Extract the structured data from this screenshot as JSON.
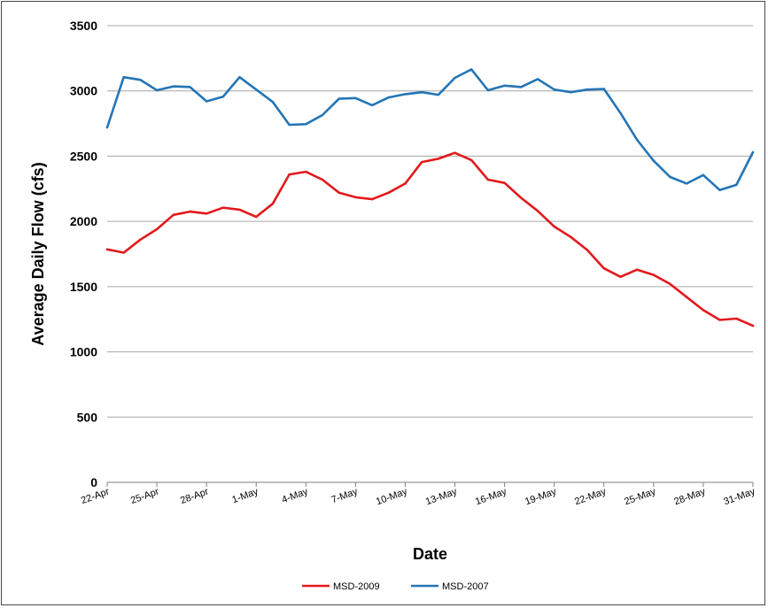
{
  "chart_data": {
    "type": "line",
    "title": "",
    "xlabel": "Date",
    "ylabel": "Average Daily Flow (cfs)",
    "ylim": [
      0,
      3500
    ],
    "yticks": [
      0,
      500,
      1000,
      1500,
      2000,
      2500,
      3000,
      3500
    ],
    "grid": true,
    "legend_position": "bottom",
    "x": [
      "22-Apr",
      "23-Apr",
      "24-Apr",
      "25-Apr",
      "26-Apr",
      "27-Apr",
      "28-Apr",
      "29-Apr",
      "30-Apr",
      "1-May",
      "2-May",
      "3-May",
      "4-May",
      "5-May",
      "6-May",
      "7-May",
      "8-May",
      "9-May",
      "10-May",
      "11-May",
      "12-May",
      "13-May",
      "14-May",
      "15-May",
      "16-May",
      "17-May",
      "18-May",
      "19-May",
      "20-May",
      "21-May",
      "22-May",
      "23-May",
      "24-May",
      "25-May",
      "26-May",
      "27-May",
      "28-May",
      "29-May",
      "30-May",
      "31-May"
    ],
    "xtick_labels": [
      "22-Apr",
      "25-Apr",
      "28-Apr",
      "1-May",
      "4-May",
      "7-May",
      "10-May",
      "13-May",
      "16-May",
      "19-May",
      "22-May",
      "25-May",
      "28-May",
      "31-May"
    ],
    "series": [
      {
        "name": "MSD-2009",
        "color": "#e3191c",
        "values": [
          1785,
          1760,
          1860,
          1940,
          2050,
          2075,
          2060,
          2105,
          2090,
          2035,
          2135,
          2360,
          2380,
          2320,
          2220,
          2185,
          2170,
          2220,
          2290,
          2455,
          2480,
          2525,
          2470,
          2320,
          2295,
          2180,
          2080,
          1960,
          1880,
          1780,
          1640,
          1575,
          1630,
          1590,
          1520,
          1420,
          1320,
          1245,
          1255,
          1200
        ]
      },
      {
        "name": "MSD-2007",
        "color": "#2475b5",
        "values": [
          2720,
          3105,
          3085,
          3005,
          3035,
          3030,
          2920,
          2955,
          3105,
          3010,
          2915,
          2740,
          2745,
          2815,
          2940,
          2945,
          2890,
          2950,
          2975,
          2990,
          2970,
          3100,
          3165,
          3005,
          3040,
          3030,
          3090,
          3010,
          2990,
          3010,
          3015,
          2830,
          2625,
          2465,
          2340,
          2290,
          2355,
          2240,
          2280,
          2530
        ]
      }
    ]
  }
}
